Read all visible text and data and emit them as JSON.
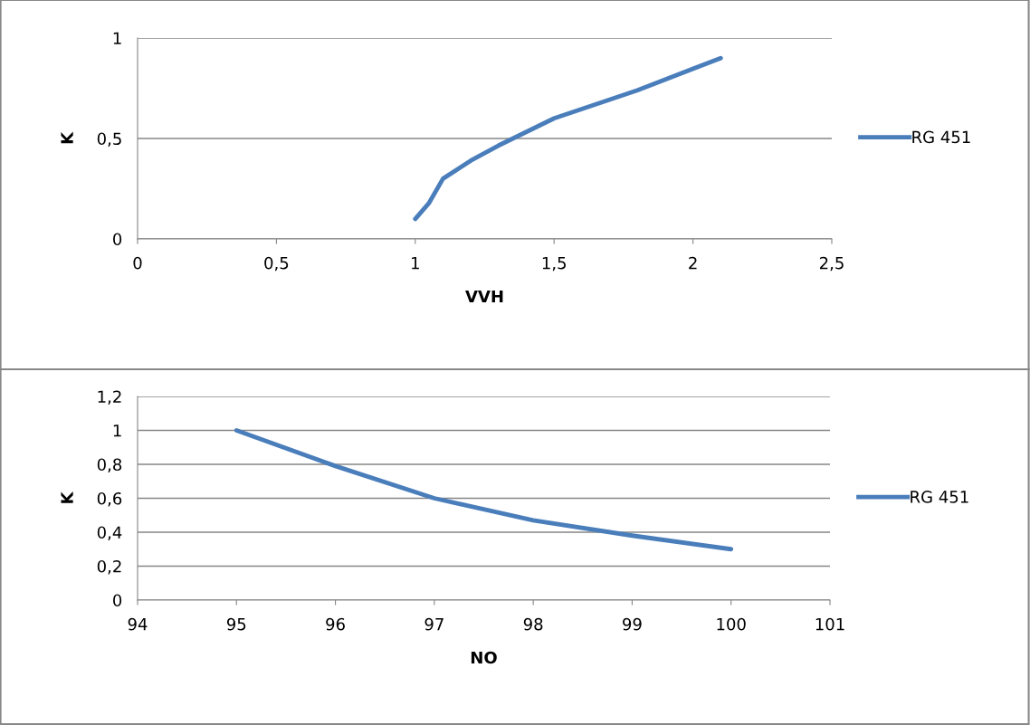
{
  "chart_data": [
    {
      "type": "line",
      "xlabel": "VVH",
      "ylabel": "K",
      "xlim": [
        0,
        2.5
      ],
      "xticks": [
        {
          "value": 0,
          "label": "0"
        },
        {
          "value": 0.5,
          "label": "0,5"
        },
        {
          "value": 1,
          "label": "1"
        },
        {
          "value": 1.5,
          "label": "1,5"
        },
        {
          "value": 2,
          "label": "2"
        },
        {
          "value": 2.5,
          "label": "2,5"
        }
      ],
      "ylim": [
        0,
        1
      ],
      "yticks": [
        {
          "value": 0,
          "label": "0"
        },
        {
          "value": 0.5,
          "label": "0,5"
        },
        {
          "value": 1,
          "label": "1"
        }
      ],
      "grid": "y",
      "legend": "right",
      "marker": "none",
      "series": [
        {
          "name": "RG 451",
          "color": "#4a7ebb",
          "x": [
            1,
            1.05,
            1.1,
            1.2,
            1.3,
            1.5,
            1.8,
            2.1
          ],
          "values": [
            0.1,
            0.18,
            0.3,
            0.39,
            0.465,
            0.6,
            0.74,
            0.9
          ]
        }
      ]
    },
    {
      "type": "line",
      "xlabel": "NO",
      "ylabel": "K",
      "xlim": [
        94,
        101
      ],
      "xticks": [
        94,
        95,
        96,
        97,
        98,
        99,
        100,
        101
      ],
      "ylim": [
        0,
        1.2
      ],
      "yticks": [
        {
          "value": 0,
          "label": "0"
        },
        {
          "value": 0.2,
          "label": "0,2"
        },
        {
          "value": 0.4,
          "label": "0,4"
        },
        {
          "value": 0.6,
          "label": "0,6"
        },
        {
          "value": 0.8,
          "label": "0,8"
        },
        {
          "value": 1,
          "label": "1"
        },
        {
          "value": 1.2,
          "label": "1,2"
        }
      ],
      "grid": "y",
      "legend": "right",
      "marker": "none",
      "series": [
        {
          "name": "RG 451",
          "color": "#4a7ebb",
          "x": [
            95,
            96,
            97,
            98,
            99,
            100
          ],
          "values": [
            1,
            0.79,
            0.6,
            0.47,
            0.38,
            0.3
          ]
        }
      ]
    }
  ]
}
